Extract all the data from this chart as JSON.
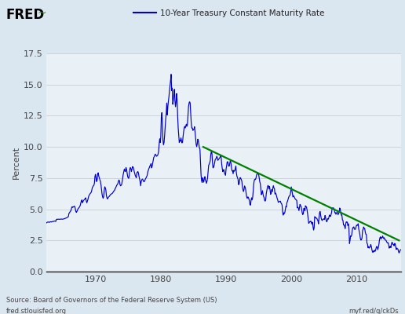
{
  "title": "10-Year Treasury Constant Maturity Rate",
  "ylabel": "Percent",
  "background_color": "#dae6f0",
  "plot_bg_color": "#dae6f0",
  "line_color": "#0000cc",
  "trendline_color": "#008000",
  "ylim": [
    0.0,
    17.5
  ],
  "yticks": [
    0.0,
    2.5,
    5.0,
    7.5,
    10.0,
    12.5,
    15.0,
    17.5
  ],
  "xticks": [
    1970,
    1980,
    1990,
    2000,
    2010
  ],
  "xmin": 1962.5,
  "xmax": 2016.8,
  "source_text": "Source: Board of Governors of the Federal Reserve System (US)",
  "footer_left": "fred.stlouisfed.org",
  "footer_right": "myf.red/g/ckDs",
  "legend_label": "10-Year Treasury Constant Maturity Rate",
  "trendline_x": [
    1986.5,
    2016.5
  ],
  "trendline_y": [
    10.0,
    2.5
  ],
  "grid_years": [
    1965,
    1970,
    1975,
    1980,
    1985,
    1990,
    1995,
    2000,
    2005,
    2010,
    2015
  ],
  "monthly_data": [
    1962.0,
    3.8,
    1962.083,
    3.85,
    1962.167,
    3.88,
    1962.25,
    3.9,
    1962.333,
    3.87,
    1962.417,
    3.88,
    1962.5,
    3.92,
    1962.583,
    3.95,
    1962.667,
    3.97,
    1962.75,
    3.98,
    1962.833,
    3.96,
    1962.917,
    3.95,
    1963.0,
    3.98,
    1963.083,
    4.0,
    1963.167,
    3.99,
    1963.25,
    3.98,
    1963.333,
    4.01,
    1963.417,
    4.02,
    1963.5,
    4.01,
    1963.583,
    4.03,
    1963.667,
    4.05,
    1963.75,
    4.06,
    1963.833,
    4.04,
    1963.917,
    4.03,
    1964.0,
    4.18,
    1964.083,
    4.2,
    1964.167,
    4.19,
    1964.25,
    4.21,
    1964.333,
    4.2,
    1964.417,
    4.19,
    1964.5,
    4.2,
    1964.583,
    4.21,
    1964.667,
    4.2,
    1964.75,
    4.22,
    1964.833,
    4.21,
    1964.917,
    4.2,
    1965.0,
    4.21,
    1965.083,
    4.22,
    1965.167,
    4.23,
    1965.25,
    4.25,
    1965.333,
    4.27,
    1965.417,
    4.28,
    1965.5,
    4.3,
    1965.583,
    4.32,
    1965.667,
    4.35,
    1965.75,
    4.38,
    1965.833,
    4.4,
    1965.917,
    4.65,
    1966.0,
    4.72,
    1966.083,
    4.8,
    1966.167,
    4.85,
    1966.25,
    4.92,
    1966.333,
    5.1,
    1966.417,
    5.2,
    1966.5,
    5.15,
    1966.583,
    5.18,
    1966.667,
    5.22,
    1966.75,
    5.25,
    1966.833,
    5.2,
    1966.917,
    5.0,
    1967.0,
    4.8,
    1967.083,
    4.75,
    1967.167,
    4.85,
    1967.25,
    4.95,
    1967.333,
    5.05,
    1967.417,
    5.1,
    1967.5,
    5.15,
    1967.583,
    5.22,
    1967.667,
    5.32,
    1967.75,
    5.52,
    1967.833,
    5.68,
    1967.917,
    5.75,
    1968.0,
    5.52,
    1968.083,
    5.62,
    1968.167,
    5.7,
    1968.25,
    5.75,
    1968.333,
    5.8,
    1968.417,
    5.85,
    1968.5,
    5.92,
    1968.583,
    5.68,
    1968.667,
    5.52,
    1968.75,
    5.65,
    1968.833,
    5.78,
    1968.917,
    5.98,
    1969.0,
    6.1,
    1969.083,
    6.18,
    1969.167,
    6.25,
    1969.25,
    6.3,
    1969.333,
    6.35,
    1969.417,
    6.5,
    1969.5,
    6.72,
    1969.583,
    6.8,
    1969.667,
    6.88,
    1969.75,
    6.92,
    1969.833,
    7.1,
    1969.917,
    7.65,
    1970.0,
    7.8,
    1970.083,
    7.52,
    1970.167,
    7.22,
    1970.25,
    7.35,
    1970.333,
    7.85,
    1970.417,
    7.92,
    1970.5,
    7.65,
    1970.583,
    7.52,
    1970.667,
    7.35,
    1970.75,
    7.25,
    1970.833,
    6.98,
    1970.917,
    6.62,
    1971.0,
    6.22,
    1971.083,
    6.0,
    1971.167,
    5.88,
    1971.25,
    6.02,
    1971.333,
    6.52,
    1971.417,
    6.8,
    1971.5,
    6.72,
    1971.583,
    6.55,
    1971.667,
    6.1,
    1971.75,
    5.92,
    1971.833,
    5.82,
    1971.917,
    5.92,
    1972.0,
    5.98,
    1972.083,
    6.02,
    1972.167,
    6.08,
    1972.25,
    6.15,
    1972.333,
    6.2,
    1972.417,
    6.22,
    1972.5,
    6.25,
    1972.583,
    6.28,
    1972.667,
    6.35,
    1972.75,
    6.42,
    1972.833,
    6.48,
    1972.917,
    6.52,
    1973.0,
    6.65,
    1973.083,
    6.72,
    1973.167,
    6.82,
    1973.25,
    6.92,
    1973.333,
    6.98,
    1973.417,
    7.05,
    1973.5,
    7.22,
    1973.583,
    7.35,
    1973.667,
    7.28,
    1973.75,
    6.98,
    1973.833,
    6.88,
    1973.917,
    6.92,
    1974.0,
    6.98,
    1974.083,
    7.22,
    1974.167,
    7.52,
    1974.25,
    7.82,
    1974.333,
    8.02,
    1974.417,
    8.22,
    1974.5,
    8.08,
    1974.583,
    8.02,
    1974.667,
    8.35,
    1974.75,
    8.22,
    1974.833,
    7.92,
    1974.917,
    7.65,
    1975.0,
    7.52,
    1975.083,
    7.48,
    1975.167,
    7.72,
    1975.25,
    8.22,
    1975.333,
    8.35,
    1975.417,
    8.25,
    1975.5,
    8.02,
    1975.583,
    8.22,
    1975.667,
    8.42,
    1975.75,
    8.38,
    1975.833,
    8.28,
    1975.917,
    8.05,
    1976.0,
    7.88,
    1976.083,
    7.72,
    1976.167,
    7.62,
    1976.25,
    7.52,
    1976.333,
    7.92,
    1976.417,
    7.98,
    1976.5,
    8.02,
    1976.583,
    7.88,
    1976.667,
    7.62,
    1976.75,
    7.42,
    1976.833,
    7.22,
    1976.917,
    6.88,
    1977.0,
    7.22,
    1977.083,
    7.35,
    1977.167,
    7.42,
    1977.25,
    7.38,
    1977.333,
    7.28,
    1977.417,
    7.2,
    1977.5,
    7.25,
    1977.583,
    7.35,
    1977.667,
    7.45,
    1977.75,
    7.52,
    1977.833,
    7.62,
    1977.917,
    7.72,
    1978.0,
    7.98,
    1978.083,
    8.12,
    1978.167,
    8.25,
    1978.25,
    8.35,
    1978.333,
    8.48,
    1978.417,
    8.52,
    1978.5,
    8.65,
    1978.583,
    8.32,
    1978.667,
    8.42,
    1978.75,
    8.65,
    1978.833,
    8.88,
    1978.917,
    9.15,
    1979.0,
    9.22,
    1979.083,
    9.35,
    1979.167,
    9.42,
    1979.25,
    9.35,
    1979.333,
    9.25,
    1979.417,
    9.28,
    1979.5,
    9.32,
    1979.583,
    9.42,
    1979.667,
    9.65,
    1979.75,
    10.22,
    1979.833,
    10.65,
    1979.917,
    10.35,
    1980.0,
    10.8,
    1980.083,
    12.42,
    1980.167,
    12.75,
    1980.25,
    11.92,
    1980.333,
    10.52,
    1980.417,
    10.18,
    1980.5,
    10.35,
    1980.583,
    10.88,
    1980.667,
    11.52,
    1980.75,
    12.22,
    1980.833,
    12.68,
    1980.917,
    13.52,
    1981.0,
    12.57,
    1981.083,
    13.22,
    1981.167,
    13.68,
    1981.25,
    14.02,
    1981.333,
    14.52,
    1981.417,
    14.92,
    1981.5,
    15.32,
    1981.583,
    15.82,
    1981.667,
    14.52,
    1981.75,
    14.72,
    1981.833,
    13.42,
    1981.917,
    13.72,
    1982.0,
    14.22,
    1982.083,
    14.62,
    1982.167,
    13.72,
    1982.25,
    13.22,
    1982.333,
    13.52,
    1982.417,
    14.28,
    1982.5,
    13.82,
    1982.583,
    12.52,
    1982.667,
    11.52,
    1982.75,
    10.92,
    1982.833,
    10.35,
    1982.917,
    10.52,
    1983.0,
    10.45,
    1983.083,
    10.72,
    1983.167,
    10.52,
    1983.25,
    10.32,
    1983.333,
    10.38,
    1983.417,
    10.85,
    1983.5,
    11.22,
    1983.583,
    11.52,
    1983.667,
    11.65,
    1983.75,
    11.52,
    1983.833,
    11.68,
    1983.917,
    11.82,
    1984.0,
    11.65,
    1984.083,
    11.82,
    1984.167,
    12.52,
    1984.25,
    13.22,
    1984.333,
    13.52,
    1984.417,
    13.62,
    1984.5,
    13.52,
    1984.583,
    12.72,
    1984.667,
    11.92,
    1984.75,
    11.52,
    1984.833,
    11.52,
    1984.917,
    11.32,
    1985.0,
    11.38,
    1985.083,
    11.42,
    1985.167,
    11.62,
    1985.25,
    11.22,
    1985.333,
    10.72,
    1985.417,
    10.22,
    1985.5,
    10.02,
    1985.583,
    10.22,
    1985.667,
    10.62,
    1985.75,
    10.52,
    1985.833,
    10.22,
    1985.917,
    9.92,
    1986.0,
    9.82,
    1986.083,
    8.72,
    1986.167,
    7.78,
    1986.25,
    7.3,
    1986.333,
    7.15,
    1986.417,
    7.52,
    1986.5,
    7.3,
    1986.583,
    7.17,
    1986.667,
    7.45,
    1986.75,
    7.62,
    1986.833,
    7.35,
    1986.917,
    7.25,
    1987.0,
    7.08,
    1987.083,
    7.25,
    1987.167,
    7.52,
    1987.25,
    8.02,
    1987.333,
    8.52,
    1987.417,
    8.62,
    1987.5,
    8.72,
    1987.583,
    8.92,
    1987.667,
    9.42,
    1987.75,
    9.62,
    1987.833,
    9.52,
    1987.917,
    8.82,
    1988.0,
    8.32,
    1988.083,
    8.35,
    1988.167,
    8.52,
    1988.25,
    8.72,
    1988.333,
    8.98,
    1988.417,
    9.02,
    1988.5,
    9.12,
    1988.583,
    9.25,
    1988.667,
    9.12,
    1988.75,
    8.92,
    1988.833,
    8.98,
    1988.917,
    9.05,
    1989.0,
    9.09,
    1989.083,
    9.17,
    1989.167,
    9.36,
    1989.25,
    9.18,
    1989.333,
    8.62,
    1989.417,
    8.27,
    1989.5,
    8.02,
    1989.583,
    8.12,
    1989.667,
    8.19,
    1989.75,
    7.92,
    1989.833,
    7.82,
    1989.917,
    7.72,
    1990.0,
    8.21,
    1990.083,
    8.47,
    1990.167,
    8.79,
    1990.25,
    8.82,
    1990.333,
    8.62,
    1990.417,
    8.45,
    1990.5,
    8.47,
    1990.583,
    8.72,
    1990.667,
    8.92,
    1990.75,
    8.72,
    1990.833,
    8.35,
    1990.917,
    8.08,
    1991.0,
    8.09,
    1991.083,
    7.85,
    1991.167,
    8.12,
    1991.25,
    8.05,
    1991.333,
    8.08,
    1991.417,
    8.28,
    1991.5,
    8.47,
    1991.583,
    7.92,
    1991.667,
    7.65,
    1991.75,
    7.53,
    1991.833,
    7.42,
    1991.917,
    6.97,
    1992.0,
    7.03,
    1992.083,
    7.34,
    1992.167,
    7.54,
    1992.25,
    7.48,
    1992.333,
    7.39,
    1992.417,
    7.26,
    1992.5,
    6.84,
    1992.583,
    6.59,
    1992.667,
    6.42,
    1992.75,
    6.57,
    1992.833,
    6.87,
    1992.917,
    6.77,
    1993.0,
    6.6,
    1993.083,
    6.26,
    1993.167,
    5.98,
    1993.25,
    5.87,
    1993.333,
    5.99,
    1993.417,
    5.96,
    1993.5,
    5.81,
    1993.583,
    5.68,
    1993.667,
    5.36,
    1993.75,
    5.33,
    1993.833,
    5.72,
    1993.917,
    5.92,
    1994.0,
    5.75,
    1994.083,
    5.97,
    1994.167,
    6.48,
    1994.25,
    7.07,
    1994.333,
    7.33,
    1994.417,
    7.41,
    1994.5,
    7.38,
    1994.583,
    7.49,
    1994.667,
    7.73,
    1994.75,
    7.83,
    1994.833,
    7.96,
    1994.917,
    7.81,
    1995.0,
    7.78,
    1995.083,
    7.47,
    1995.167,
    7.2,
    1995.25,
    7.06,
    1995.333,
    6.63,
    1995.417,
    6.17,
    1995.5,
    6.28,
    1995.583,
    6.49,
    1995.667,
    6.21,
    1995.75,
    6.03,
    1995.833,
    5.93,
    1995.917,
    5.71,
    1996.0,
    5.65,
    1996.083,
    5.81,
    1996.167,
    6.27,
    1996.25,
    6.51,
    1996.333,
    6.74,
    1996.417,
    6.91,
    1996.5,
    6.87,
    1996.583,
    6.64,
    1996.667,
    6.83,
    1996.75,
    6.53,
    1996.833,
    6.2,
    1996.917,
    6.3,
    1997.0,
    6.58,
    1997.083,
    6.42,
    1997.167,
    6.69,
    1997.25,
    6.89,
    1997.333,
    6.71,
    1997.417,
    6.65,
    1997.5,
    6.22,
    1997.583,
    6.3,
    1997.667,
    6.21,
    1997.75,
    6.03,
    1997.833,
    5.87,
    1997.917,
    5.75,
    1998.0,
    5.56,
    1998.083,
    5.57,
    1998.167,
    5.62,
    1998.25,
    5.64,
    1998.333,
    5.65,
    1998.417,
    5.5,
    1998.5,
    5.45,
    1998.583,
    5.34,
    1998.667,
    4.81,
    1998.75,
    4.53,
    1998.833,
    4.72,
    1998.917,
    4.65,
    1999.0,
    4.72,
    1999.083,
    4.99,
    1999.167,
    5.23,
    1999.25,
    5.18,
    1999.333,
    5.54,
    1999.417,
    5.64,
    1999.5,
    5.79,
    1999.583,
    5.94,
    1999.667,
    6.05,
    1999.75,
    6.08,
    1999.833,
    6.17,
    1999.917,
    6.45,
    2000.0,
    6.79,
    2000.083,
    6.52,
    2000.167,
    6.26,
    2000.25,
    5.99,
    2000.333,
    6.1,
    2000.417,
    6.02,
    2000.5,
    5.94,
    2000.583,
    5.83,
    2000.667,
    5.8,
    2000.75,
    5.74,
    2000.833,
    5.72,
    2000.917,
    5.11,
    2001.0,
    5.16,
    2001.083,
    5.1,
    2001.167,
    4.89,
    2001.25,
    5.14,
    2001.333,
    5.39,
    2001.417,
    5.28,
    2001.5,
    5.24,
    2001.583,
    4.97,
    2001.667,
    4.73,
    2001.75,
    4.57,
    2001.833,
    4.65,
    2001.917,
    5.07,
    2002.0,
    5.04,
    2002.083,
    4.88,
    2002.167,
    5.28,
    2002.25,
    5.22,
    2002.333,
    5.18,
    2002.417,
    4.93,
    2002.5,
    4.62,
    2002.583,
    4.22,
    2002.667,
    3.87,
    2002.75,
    3.93,
    2002.833,
    4.01,
    2002.917,
    4.02,
    2003.0,
    4.05,
    2003.083,
    3.9,
    2003.167,
    3.81,
    2003.25,
    3.96,
    2003.333,
    3.57,
    2003.417,
    3.33,
    2003.5,
    3.52,
    2003.583,
    4.41,
    2003.667,
    4.38,
    2003.75,
    4.29,
    2003.833,
    4.3,
    2003.917,
    4.26,
    2004.0,
    4.15,
    2004.083,
    4.08,
    2004.167,
    3.83,
    2004.25,
    4.34,
    2004.333,
    4.72,
    2004.417,
    4.82,
    2004.5,
    4.5,
    2004.583,
    4.28,
    2004.667,
    4.14,
    2004.75,
    4.1,
    2004.833,
    4.19,
    2004.917,
    4.23,
    2005.0,
    4.22,
    2005.083,
    4.17,
    2005.167,
    4.5,
    2005.25,
    4.34,
    2005.333,
    4.14,
    2005.417,
    4.0,
    2005.5,
    4.08,
    2005.583,
    4.26,
    2005.667,
    4.2,
    2005.75,
    4.33,
    2005.833,
    4.54,
    2005.917,
    4.47,
    2006.0,
    4.42,
    2006.083,
    4.57,
    2006.167,
    4.72,
    2006.25,
    5.07,
    2006.333,
    5.11,
    2006.417,
    5.11,
    2006.5,
    5.09,
    2006.583,
    4.99,
    2006.667,
    4.72,
    2006.75,
    4.73,
    2006.833,
    4.6,
    2006.917,
    4.7,
    2007.0,
    4.76,
    2007.083,
    4.72,
    2007.167,
    4.56,
    2007.25,
    4.69,
    2007.333,
    4.75,
    2007.417,
    5.1,
    2007.5,
    5.0,
    2007.583,
    4.72,
    2007.667,
    4.52,
    2007.75,
    4.53,
    2007.833,
    4.15,
    2007.917,
    4.1,
    2008.0,
    3.74,
    2008.083,
    3.74,
    2008.167,
    3.64,
    2008.25,
    3.45,
    2008.333,
    3.82,
    2008.417,
    3.99,
    2008.5,
    3.97,
    2008.583,
    3.97,
    2008.667,
    3.69,
    2008.75,
    3.83,
    2008.833,
    3.41,
    2008.917,
    2.25,
    2009.0,
    2.52,
    2009.083,
    2.87,
    2009.167,
    2.82,
    2009.25,
    2.93,
    2009.333,
    3.29,
    2009.417,
    3.53,
    2009.5,
    3.53,
    2009.583,
    3.59,
    2009.667,
    3.4,
    2009.75,
    3.39,
    2009.833,
    3.4,
    2009.917,
    3.59,
    2010.0,
    3.73,
    2010.083,
    3.69,
    2010.167,
    3.73,
    2010.25,
    3.84,
    2010.333,
    3.42,
    2010.417,
    3.21,
    2010.5,
    2.97,
    2010.583,
    2.65,
    2010.667,
    2.53,
    2010.75,
    2.57,
    2010.833,
    2.69,
    2010.917,
    3.29,
    2011.0,
    3.39,
    2011.083,
    3.58,
    2011.167,
    3.47,
    2011.25,
    3.46,
    2011.333,
    3.17,
    2011.417,
    3.0,
    2011.5,
    2.98,
    2011.583,
    2.3,
    2011.667,
    2.22,
    2011.75,
    1.92,
    2011.833,
    2.01,
    2011.917,
    1.88,
    2012.0,
    1.97,
    2012.083,
    1.97,
    2012.167,
    2.17,
    2012.25,
    2.05,
    2012.333,
    1.8,
    2012.417,
    1.62,
    2012.5,
    1.53,
    2012.583,
    1.65,
    2012.667,
    1.61,
    2012.75,
    1.72,
    2012.833,
    1.62,
    2012.917,
    1.72,
    2013.0,
    1.91,
    2013.083,
    2.02,
    2013.167,
    1.96,
    2013.25,
    1.76,
    2013.333,
    1.93,
    2013.417,
    2.16,
    2013.5,
    2.52,
    2013.583,
    2.72,
    2013.667,
    2.79,
    2013.75,
    2.61,
    2013.833,
    2.72,
    2013.917,
    2.74,
    2014.0,
    2.86,
    2014.083,
    2.71,
    2014.167,
    2.65,
    2014.25,
    2.72,
    2014.333,
    2.56,
    2014.417,
    2.53,
    2014.5,
    2.52,
    2014.583,
    2.42,
    2014.667,
    2.34,
    2014.75,
    2.29,
    2014.833,
    2.32,
    2014.917,
    2.17,
    2015.0,
    1.88,
    2015.083,
    1.98,
    2015.167,
    2.04,
    2015.25,
    1.92,
    2015.333,
    2.2,
    2015.417,
    2.35,
    2015.5,
    2.32,
    2015.583,
    2.17,
    2015.667,
    2.17,
    2015.75,
    2.07,
    2015.833,
    2.26,
    2015.917,
    2.24,
    2016.0,
    1.97,
    2016.083,
    1.78,
    2016.167,
    1.89,
    2016.25,
    1.83,
    2016.333,
    1.81,
    2016.417,
    1.64,
    2016.5,
    1.5,
    2016.583,
    1.56,
    2016.667,
    1.71,
    2016.75,
    1.76
  ]
}
